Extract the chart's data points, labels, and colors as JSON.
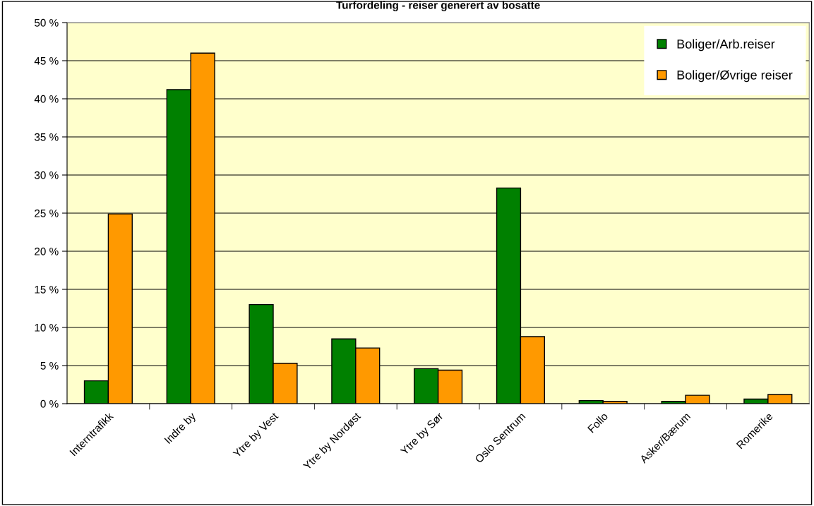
{
  "chart_data": {
    "type": "bar",
    "title": "Turfordeling - reiser generert av bosatte",
    "categories": [
      "Interntrafikk",
      "Indre by",
      "Ytre by Vest",
      "Ytre by Nordøst",
      "Ytre by Sør",
      "Oslo Sentrum",
      "Follo",
      "Asker/Bærum",
      "Romerike"
    ],
    "series": [
      {
        "name": "Boliger/Arb.reiser",
        "color": "#008000",
        "values": [
          3.0,
          41.2,
          13.0,
          8.5,
          4.6,
          28.3,
          0.4,
          0.3,
          0.6
        ]
      },
      {
        "name": "Boliger/Øvrige reiser",
        "color": "#ff9900",
        "values": [
          24.9,
          46.0,
          5.3,
          7.3,
          4.4,
          8.8,
          0.3,
          1.1,
          1.2
        ]
      }
    ],
    "ylim": [
      0,
      50
    ],
    "yticks": [
      {
        "value": 0,
        "label": "0 %"
      },
      {
        "value": 5,
        "label": "5 %"
      },
      {
        "value": 10,
        "label": "10 %"
      },
      {
        "value": 15,
        "label": "15 %"
      },
      {
        "value": 20,
        "label": "20 %"
      },
      {
        "value": 25,
        "label": "25 %"
      },
      {
        "value": 30,
        "label": "30 %"
      },
      {
        "value": 35,
        "label": "35 %"
      },
      {
        "value": 40,
        "label": "40 %"
      },
      {
        "value": 45,
        "label": "45 %"
      },
      {
        "value": 50,
        "label": "50 %"
      }
    ],
    "grid": "y",
    "legend": "top right"
  }
}
